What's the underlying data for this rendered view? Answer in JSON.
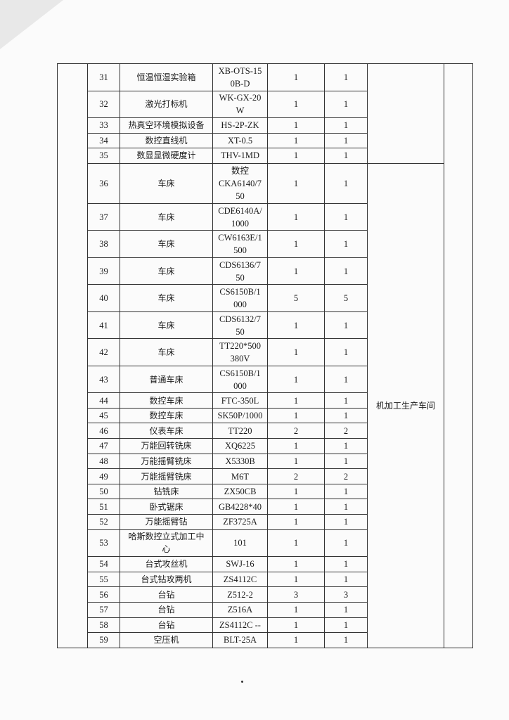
{
  "location_group_1": "",
  "location_group_2": "机加工生产车间",
  "rows": [
    {
      "no": "31",
      "name": "恒温恒湿实验箱",
      "model": "XB-OTS-15\n0B-D",
      "qty1": "1",
      "qty2": "1",
      "lines": 2
    },
    {
      "no": "32",
      "name": "激光打标机",
      "model": "WK-GX-20\nW",
      "qty1": "1",
      "qty2": "1",
      "lines": 2
    },
    {
      "no": "33",
      "name": "热真空环境模拟设备",
      "model": "HS-2P-ZK",
      "qty1": "1",
      "qty2": "1",
      "lines": 1
    },
    {
      "no": "34",
      "name": "数控直线机",
      "model": "XT-0.5",
      "qty1": "1",
      "qty2": "1",
      "lines": 1
    },
    {
      "no": "35",
      "name": "数显显微硬度计",
      "model": "THV-1MD",
      "qty1": "1",
      "qty2": "1",
      "lines": 1
    },
    {
      "no": "36",
      "name": "车床",
      "model": "数控\nCKA6140/7\n50",
      "qty1": "1",
      "qty2": "1",
      "lines": 3
    },
    {
      "no": "37",
      "name": "车床",
      "model": "CDE6140A/\n1000",
      "qty1": "1",
      "qty2": "1",
      "lines": 2
    },
    {
      "no": "38",
      "name": "车床",
      "model": "CW6163E/1\n500",
      "qty1": "1",
      "qty2": "1",
      "lines": 2
    },
    {
      "no": "39",
      "name": "车床",
      "model": "CDS6136/7\n50",
      "qty1": "1",
      "qty2": "1",
      "lines": 2
    },
    {
      "no": "40",
      "name": "车床",
      "model": "CS6150B/1\n000",
      "qty1": "5",
      "qty2": "5",
      "lines": 2
    },
    {
      "no": "41",
      "name": "车床",
      "model": "CDS6132/7\n50",
      "qty1": "1",
      "qty2": "1",
      "lines": 2
    },
    {
      "no": "42",
      "name": "车床",
      "model": "TT220*500\n380V",
      "qty1": "1",
      "qty2": "1",
      "lines": 2
    },
    {
      "no": "43",
      "name": "普通车床",
      "model": "CS6150B/1\n000",
      "qty1": "1",
      "qty2": "1",
      "lines": 2
    },
    {
      "no": "44",
      "name": "数控车床",
      "model": "FTC-350L",
      "qty1": "1",
      "qty2": "1",
      "lines": 1
    },
    {
      "no": "45",
      "name": "数控车床",
      "model": "SK50P/1000",
      "qty1": "1",
      "qty2": "1",
      "lines": 1
    },
    {
      "no": "46",
      "name": "仪表车床",
      "model": "TT220",
      "qty1": "2",
      "qty2": "2",
      "lines": 1
    },
    {
      "no": "47",
      "name": "万能回转铣床",
      "model": "XQ6225",
      "qty1": "1",
      "qty2": "1",
      "lines": 1
    },
    {
      "no": "48",
      "name": "万能摇臂铣床",
      "model": "X5330B",
      "qty1": "1",
      "qty2": "1",
      "lines": 1
    },
    {
      "no": "49",
      "name": "万能摇臂铣床",
      "model": "M6T",
      "qty1": "2",
      "qty2": "2",
      "lines": 1
    },
    {
      "no": "50",
      "name": "钻铣床",
      "model": "ZX50CB",
      "qty1": "1",
      "qty2": "1",
      "lines": 1
    },
    {
      "no": "51",
      "name": "卧式锯床",
      "model": "GB4228*40",
      "qty1": "1",
      "qty2": "1",
      "lines": 1
    },
    {
      "no": "52",
      "name": "万能摇臂钻",
      "model": "ZF3725A",
      "qty1": "1",
      "qty2": "1",
      "lines": 1
    },
    {
      "no": "53",
      "name": "哈斯数控立式加工中\n心",
      "model": "101",
      "qty1": "1",
      "qty2": "1",
      "lines": 2
    },
    {
      "no": "54",
      "name": "台式攻丝机",
      "model": "SWJ-16",
      "qty1": "1",
      "qty2": "1",
      "lines": 1
    },
    {
      "no": "55",
      "name": "台式钻攻两机",
      "model": "ZS4112C",
      "qty1": "1",
      "qty2": "1",
      "lines": 1
    },
    {
      "no": "56",
      "name": "台钻",
      "model": "Z512-2",
      "qty1": "3",
      "qty2": "3",
      "lines": 1
    },
    {
      "no": "57",
      "name": "台钻",
      "model": "Z516A",
      "qty1": "1",
      "qty2": "1",
      "lines": 1
    },
    {
      "no": "58",
      "name": "台钻",
      "model": "ZS4112C --",
      "qty1": "1",
      "qty2": "1",
      "lines": 1
    },
    {
      "no": "59",
      "name": "空压机",
      "model": "BLT-25A",
      "qty1": "1",
      "qty2": "1",
      "lines": 1
    }
  ]
}
